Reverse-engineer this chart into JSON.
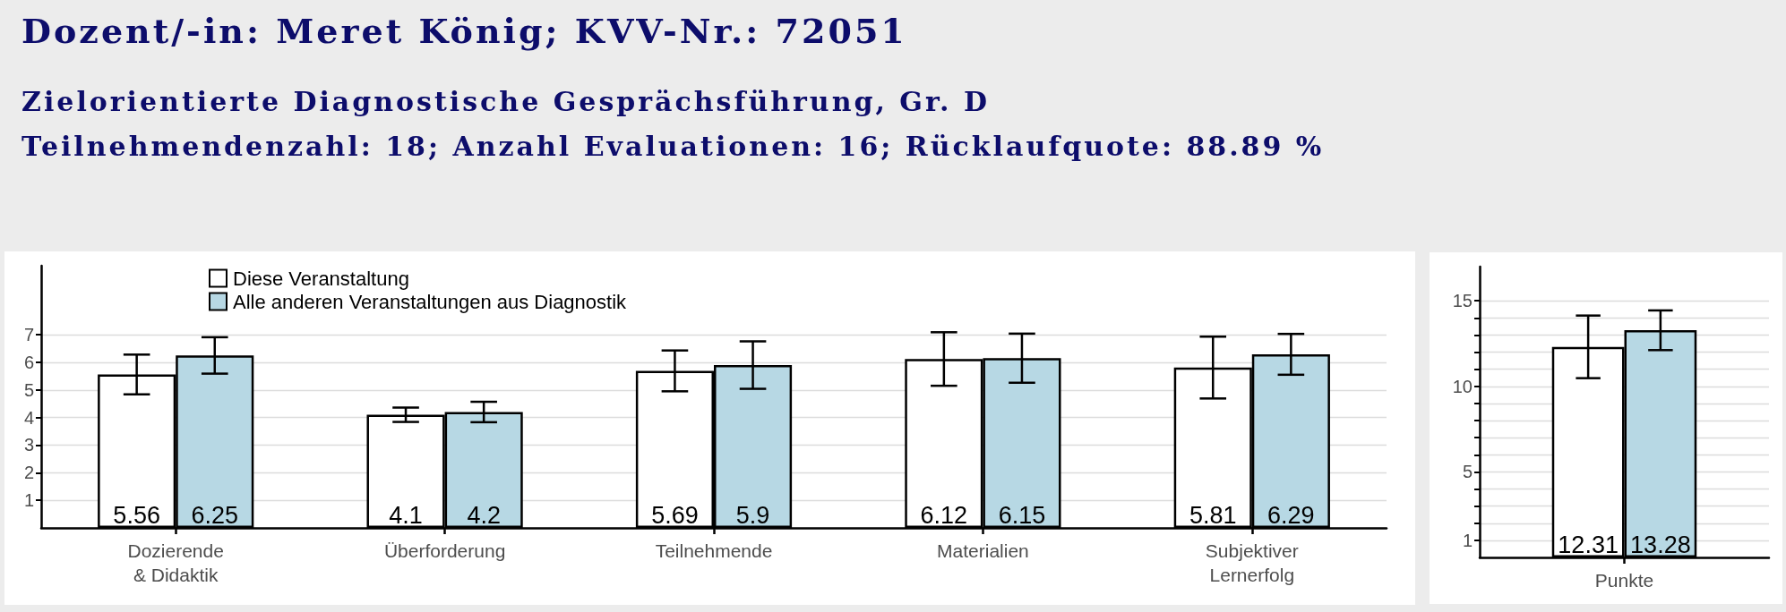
{
  "chart_data": [
    {
      "type": "bar",
      "title": "Dozent/-in: Meret König; KVV-Nr.: 72051",
      "subtitle": "Zielorientierte Diagnostische Gesprächsführung, Gr. D",
      "annotations": [
        "Teilnehmendenzahl: 18; Anzahl Evaluationen: 16; Rücklaufquote: 88.89 %"
      ],
      "categories": [
        "Dozierende\n& Didaktik",
        "Überforderung",
        "Teilnehmende",
        "Materialien",
        "Subjektiver\nLernerfolg"
      ],
      "series": [
        {
          "name": "Diese Veranstaltung",
          "color": "#ffffff",
          "values": [
            5.56,
            4.1,
            5.69,
            6.12,
            5.81
          ],
          "errors": [
            0.72,
            0.26,
            0.74,
            0.97,
            1.12
          ]
        },
        {
          "name": "Alle anderen Veranstaltungen aus Diagnostik",
          "color": "#b7d8e4",
          "values": [
            6.25,
            4.2,
            5.9,
            6.15,
            6.29
          ],
          "errors": [
            0.66,
            0.37,
            0.86,
            0.89,
            0.74
          ]
        }
      ],
      "ylim": [
        0,
        9.5
      ],
      "yticks": [
        1,
        2,
        3,
        4,
        5,
        6,
        7
      ],
      "grid": "y",
      "legend": "top left",
      "data_labels": true
    },
    {
      "type": "bar",
      "categories": [
        "Punkte"
      ],
      "series": [
        {
          "color": "#ffffff",
          "values": [
            12.31
          ],
          "errors": [
            1.83
          ]
        },
        {
          "color": "#b7d8e4",
          "values": [
            13.28
          ],
          "errors": [
            1.16
          ]
        }
      ],
      "ylim": [
        0,
        17
      ],
      "yticks": [
        1,
        {
          "value": 2,
          "label": null
        },
        {
          "value": 3,
          "label": null
        },
        {
          "value": 4,
          "label": null
        },
        5,
        {
          "value": 6,
          "label": null
        },
        {
          "value": 7,
          "label": null
        },
        {
          "value": 8,
          "label": null
        },
        {
          "value": 9,
          "label": null
        },
        10,
        {
          "value": 11,
          "label": null
        },
        {
          "value": 12,
          "label": null
        },
        {
          "value": 13,
          "label": null
        },
        {
          "value": 14,
          "label": null
        },
        15
      ],
      "grid": "y",
      "data_labels": true
    }
  ]
}
